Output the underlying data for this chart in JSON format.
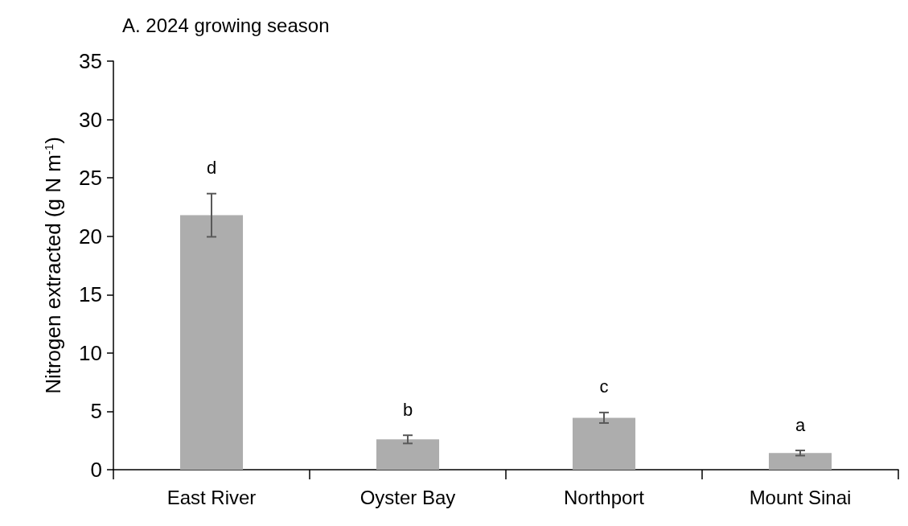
{
  "chart_data": {
    "type": "bar",
    "title": "A. 2024 growing season",
    "ylabel": "Nitrogen extracted (g N m$^{-1}$)",
    "categories": [
      "East River",
      "Oyster Bay",
      "Northport",
      "Mount Sinai"
    ],
    "values": [
      21.8,
      2.6,
      4.45,
      1.43
    ],
    "errors": [
      1.85,
      0.35,
      0.45,
      0.22
    ],
    "color": "#adadad",
    "ylim": [
      0,
      35
    ],
    "yticks": [
      0,
      5,
      10,
      15,
      20,
      25,
      30,
      35
    ],
    "grid": false,
    "annotations": [
      "d",
      "b",
      "c",
      "a"
    ]
  }
}
